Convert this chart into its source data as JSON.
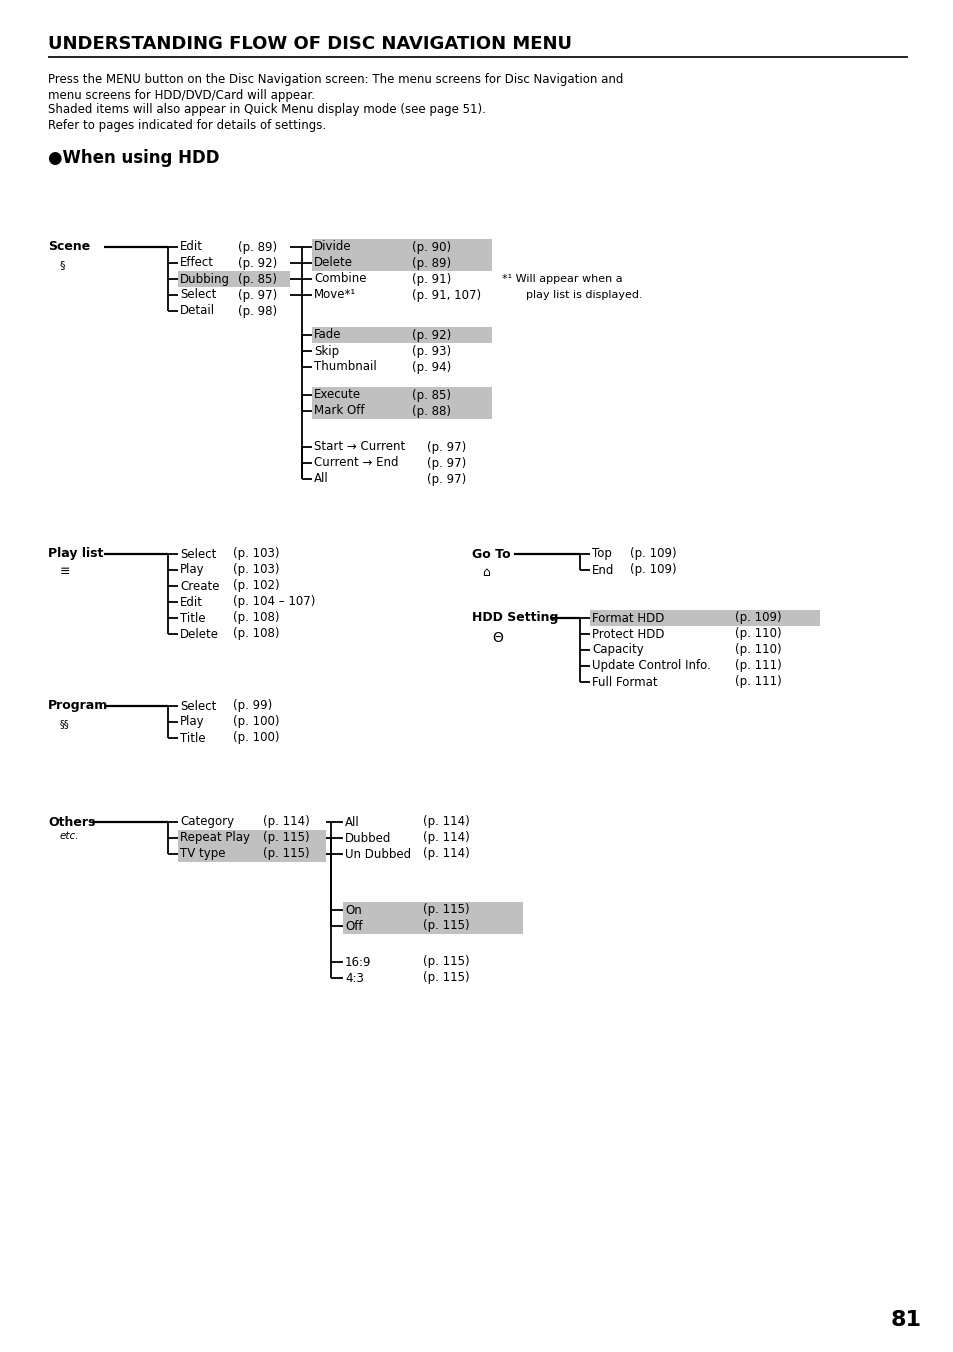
{
  "title": "UNDERSTANDING FLOW OF DISC NAVIGATION MENU",
  "sub1": "Press the MENU button on the Disc Navigation screen: The menu screens for Disc Navigation and",
  "sub2": "menu screens for HDD/DVD/Card will appear.",
  "sub3": "Shaded items will also appear in Quick Menu display mode (see page 51).",
  "sub4": "Refer to pages indicated for details of settings.",
  "when_hdd": "●When using HDD",
  "page_number": "81",
  "bg_color": "#ffffff",
  "shade_color": "#c0c0c0",
  "line_color": "#000000",
  "text_color": "#000000"
}
